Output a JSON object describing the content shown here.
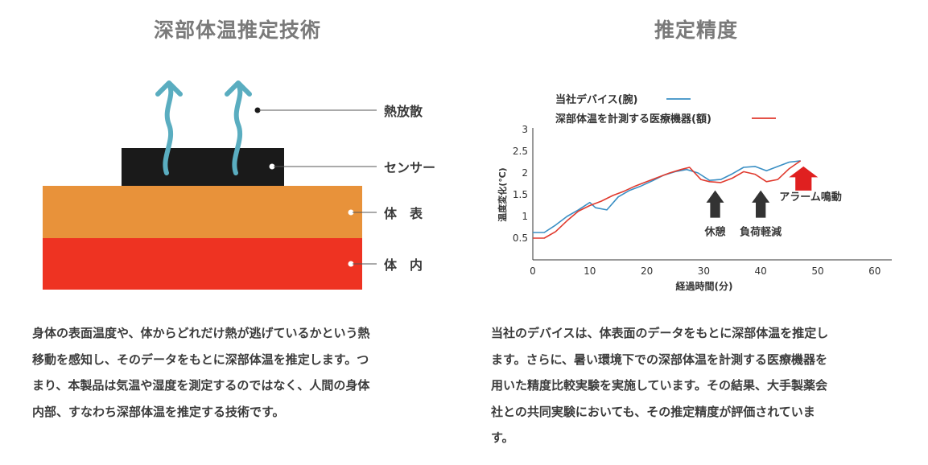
{
  "left": {
    "title": "深部体温推定技術",
    "labels": {
      "heat": "熱放散",
      "sensor": "センサー",
      "surface": "体　表",
      "core": "体　内"
    },
    "paragraph": [
      "身体の表面温度や、体からどれだけ熱が逃げているかという熱",
      "移動を感知し、そのデータをもとに深部体温を推定します。つ",
      "まり、本製品は気温や湿度を測定するのではなく、人間の身体",
      "内部、すなわち深部体温を推定する技術です。"
    ],
    "colors": {
      "surface": "#e8923a",
      "core": "#ee3322",
      "sensor": "#1a1a1a",
      "arrow": "#5aadc0"
    }
  },
  "right": {
    "title": "推定精度",
    "paragraph": [
      "当社のデバイスは、体表面のデータをもとに深部体温を推定し",
      "ます。さらに、暑い環境下での深部体温を計測する医療機器を",
      "用いた精度比較実験を実施しています。その結果、大手製薬会",
      "社との共同実験においても、その推定精度が評価されていま",
      "す。"
    ]
  },
  "chart_data": {
    "type": "line",
    "xlabel": "経過時間(分)",
    "ylabel": "温度変化(℃)",
    "xlim": [
      0,
      63
    ],
    "ylim": [
      0,
      3
    ],
    "xticks": [
      "0",
      "10",
      "20",
      "30",
      "40",
      "50",
      "60"
    ],
    "yticks": [
      "0.5",
      "1",
      "1.5",
      "2",
      "2.5",
      "3"
    ],
    "series": [
      {
        "name": "当社デバイス(腕)",
        "color": "#3a8fc4",
        "points": [
          [
            0,
            0.63
          ],
          [
            2,
            0.63
          ],
          [
            4,
            0.8
          ],
          [
            6,
            1.0
          ],
          [
            8,
            1.15
          ],
          [
            10,
            1.32
          ],
          [
            11,
            1.2
          ],
          [
            13,
            1.15
          ],
          [
            15,
            1.45
          ],
          [
            17,
            1.6
          ],
          [
            19,
            1.7
          ],
          [
            21,
            1.82
          ],
          [
            23,
            1.95
          ],
          [
            25,
            2.03
          ],
          [
            27,
            2.08
          ],
          [
            29,
            2.0
          ],
          [
            31,
            1.83
          ],
          [
            33,
            1.85
          ],
          [
            35,
            1.98
          ],
          [
            37,
            2.13
          ],
          [
            39,
            2.15
          ],
          [
            41,
            2.05
          ],
          [
            43,
            2.15
          ],
          [
            45,
            2.25
          ],
          [
            47,
            2.28
          ]
        ]
      },
      {
        "name": "深部体温を計測する医療機器(額)",
        "color": "#e03a2e",
        "points": [
          [
            0,
            0.5
          ],
          [
            2,
            0.5
          ],
          [
            4,
            0.65
          ],
          [
            6,
            0.9
          ],
          [
            8,
            1.12
          ],
          [
            10,
            1.25
          ],
          [
            12,
            1.35
          ],
          [
            14,
            1.48
          ],
          [
            16,
            1.58
          ],
          [
            18,
            1.7
          ],
          [
            20,
            1.8
          ],
          [
            22,
            1.9
          ],
          [
            24,
            2.0
          ],
          [
            26,
            2.08
          ],
          [
            27.5,
            2.13
          ],
          [
            29.5,
            1.85
          ],
          [
            31,
            1.8
          ],
          [
            33,
            1.78
          ],
          [
            35,
            1.88
          ],
          [
            37,
            2.03
          ],
          [
            39,
            1.97
          ],
          [
            41,
            1.8
          ],
          [
            43,
            1.85
          ],
          [
            45,
            2.1
          ],
          [
            47,
            2.28
          ]
        ]
      }
    ],
    "annotations": [
      {
        "text": "休憩",
        "x": 32,
        "y": 1.6,
        "color": "#3a3a3a"
      },
      {
        "text": "負荷軽減",
        "x": 40,
        "y": 1.6,
        "color": "#3a3a3a"
      },
      {
        "text": "アラーム鳴動",
        "x": 47.5,
        "y": 2.15,
        "color": "#e02020"
      }
    ]
  }
}
